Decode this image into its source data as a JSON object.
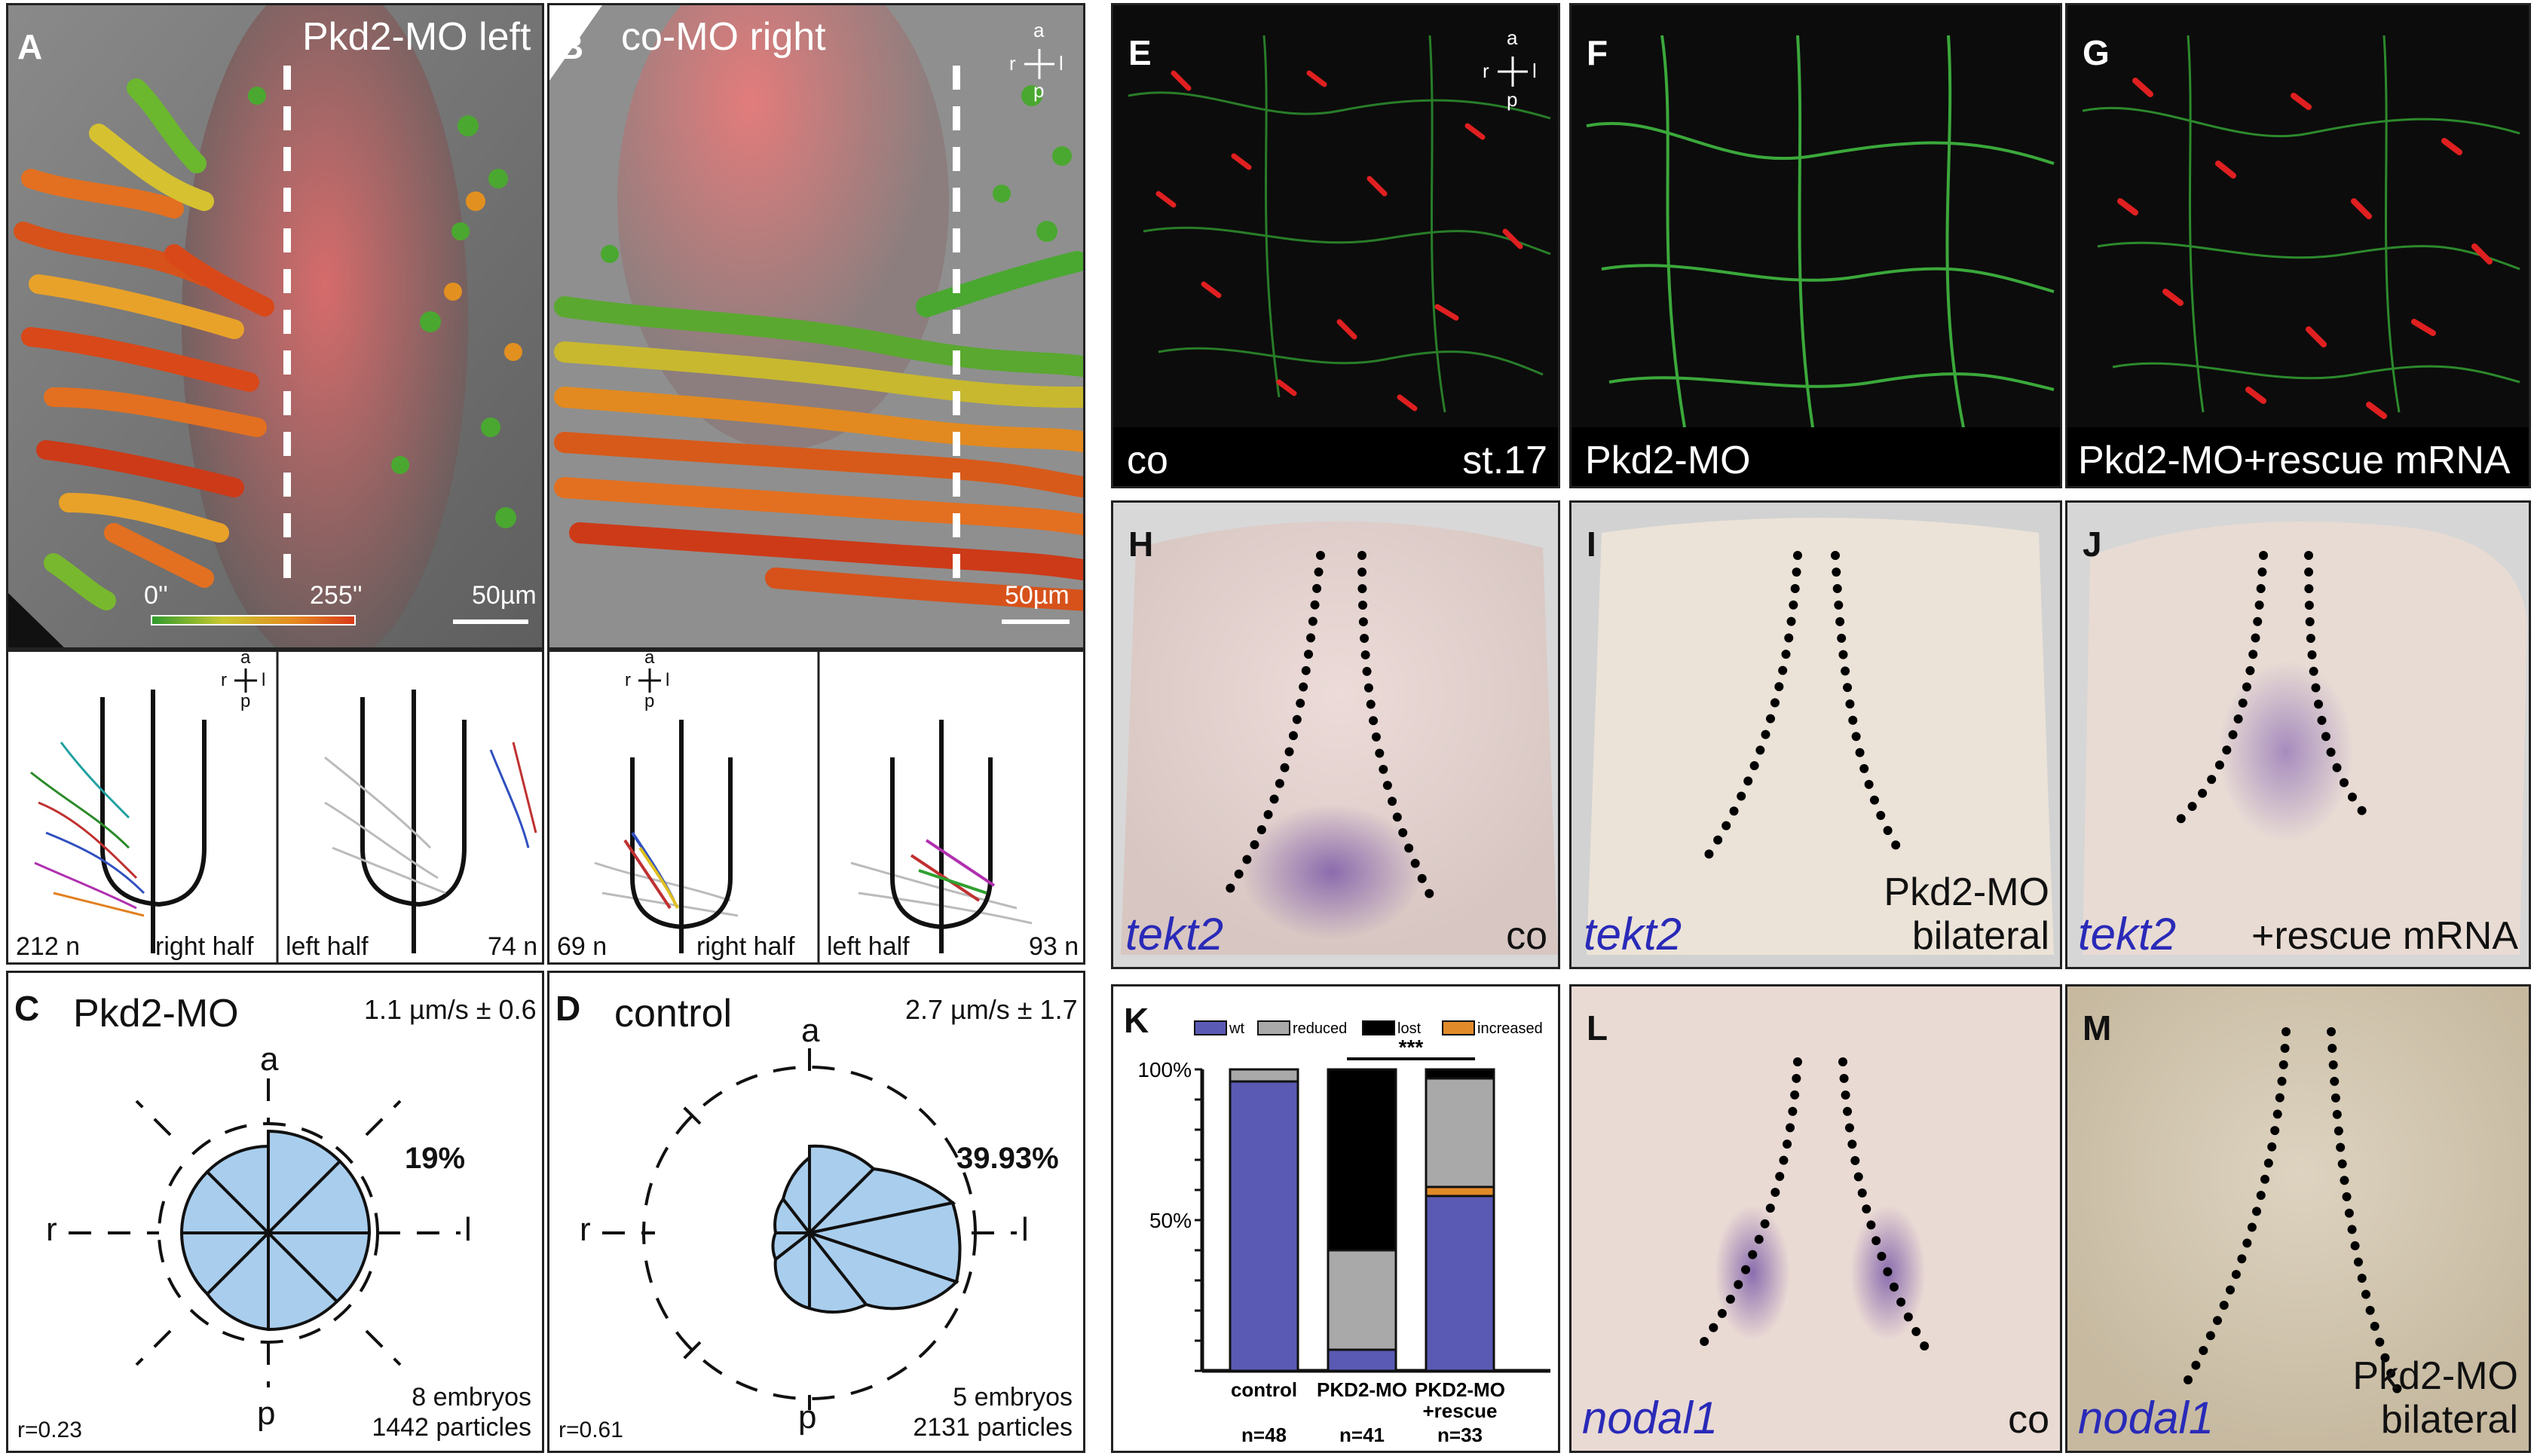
{
  "panels": {
    "A": {
      "letter": "A",
      "title": "Pkd2-MO left",
      "scale": "50µm",
      "time_start": "0''",
      "time_end": "255''"
    },
    "B": {
      "letter": "B",
      "title": "co-MO right",
      "scale": "50µm"
    },
    "A2": {
      "left_count": "212 n",
      "left_label": "right half",
      "right_label": "left half",
      "right_count": "74 n"
    },
    "B2": {
      "left_count": "69 n",
      "left_label": "right half",
      "right_label": "left half",
      "right_count": "93 n"
    },
    "C": {
      "letter": "C",
      "title": "Pkd2-MO",
      "speed": "1.1 µm/s ± 0.6",
      "percent": "19%",
      "r": "r=0.23",
      "embryos": "8 embryos",
      "particles": "1442 particles"
    },
    "D": {
      "letter": "D",
      "title": "control",
      "speed": "2.7 µm/s ± 1.7",
      "percent": "39.93%",
      "r": "r=0.61",
      "embryos": "5 embryos",
      "particles": "2131 particles"
    },
    "E": {
      "letter": "E",
      "label": "co",
      "stage": "st.17"
    },
    "F": {
      "letter": "F",
      "label": "Pkd2-MO"
    },
    "G": {
      "letter": "G",
      "label": "Pkd2-MO+rescue mRNA"
    },
    "H": {
      "letter": "H",
      "gene": "tekt2",
      "label": "co"
    },
    "I": {
      "letter": "I",
      "gene": "tekt2",
      "label_line1": "Pkd2-MO",
      "label_line2": "bilateral"
    },
    "J": {
      "letter": "J",
      "gene": "tekt2",
      "label": "+rescue mRNA"
    },
    "K": {
      "letter": "K"
    },
    "L": {
      "letter": "L",
      "gene": "nodal1",
      "label": "co"
    },
    "M": {
      "letter": "M",
      "gene": "nodal1",
      "label_line1": "Pkd2-MO",
      "label_line2": "bilateral"
    }
  },
  "axis": {
    "a": "a",
    "p": "p",
    "r": "r",
    "l": "l"
  },
  "chart_data": {
    "type": "bar",
    "stacked": true,
    "categories": [
      "control",
      "PKD2-MO",
      "PKD2-MO +rescue"
    ],
    "category_lines": [
      [
        "control"
      ],
      [
        "PKD2-MO"
      ],
      [
        "PKD2-MO",
        "+rescue"
      ]
    ],
    "n_labels": [
      "n=48",
      "n=41",
      "n=33"
    ],
    "legend": [
      "wt",
      "reduced",
      "lost",
      "increased"
    ],
    "colors": {
      "wt": "#5a5ab4",
      "reduced": "#a9a9a9",
      "lost": "#000000",
      "increased": "#e08a2a"
    },
    "series": [
      {
        "name": "wt",
        "values": [
          96,
          7,
          58
        ]
      },
      {
        "name": "increased",
        "values": [
          0,
          0,
          3
        ]
      },
      {
        "name": "reduced",
        "values": [
          4,
          33,
          36
        ]
      },
      {
        "name": "lost",
        "values": [
          0,
          60,
          3
        ]
      }
    ],
    "yticks": [
      "100%",
      "50%"
    ],
    "ylim": [
      0,
      100
    ],
    "significance": "***"
  }
}
